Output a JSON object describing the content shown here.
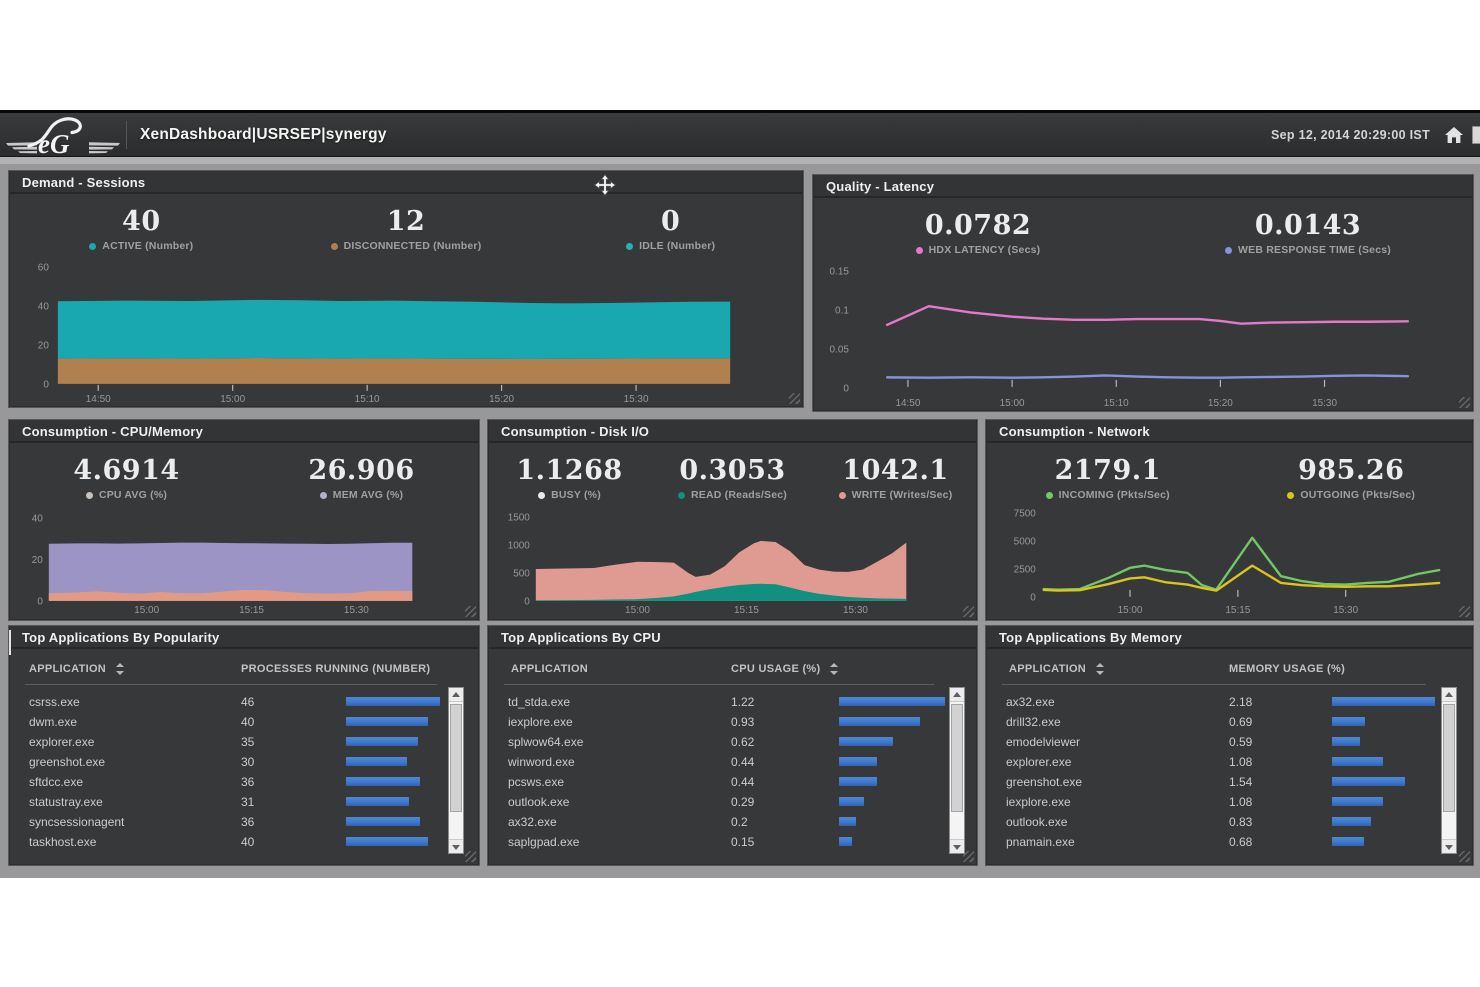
{
  "header": {
    "logo_text": "eG",
    "title": "XenDashboard|USRSEP|synergy",
    "datetime": "Sep 12, 2014 20:29:00 IST"
  },
  "panels": {
    "demand": {
      "title": "Demand - Sessions",
      "stats": [
        {
          "value": "40",
          "label": "ACTIVE (Number)",
          "color": "#1aa8b0"
        },
        {
          "value": "12",
          "label": "DISCONNECTED (Number)",
          "color": "#b0804e"
        },
        {
          "value": "0",
          "label": "IDLE (Number)",
          "color": "#25b3af"
        }
      ]
    },
    "quality": {
      "title": "Quality - Latency",
      "stats": [
        {
          "value": "0.0782",
          "label": "HDX LATENCY (Secs)",
          "color": "#e678cb"
        },
        {
          "value": "0.0143",
          "label": "WEB RESPONSE TIME (Secs)",
          "color": "#8792de"
        }
      ]
    },
    "cpumem": {
      "title": "Consumption - CPU/Memory",
      "stats": [
        {
          "value": "4.6914",
          "label": "CPU AVG (%)",
          "color": "#c9c2ba"
        },
        {
          "value": "26.906",
          "label": "MEM AVG (%)",
          "color": "#b3aecb"
        }
      ]
    },
    "disk": {
      "title": "Consumption - Disk I/O",
      "stats": [
        {
          "value": "1.1268",
          "label": "BUSY (%)",
          "color": "#e3ecec"
        },
        {
          "value": "0.3053",
          "label": "READ (Reads/Sec)",
          "color": "#0f9080"
        },
        {
          "value": "1042.1",
          "label": "WRITE (Writes/Sec)",
          "color": "#df9a92"
        }
      ]
    },
    "network": {
      "title": "Consumption - Network",
      "stats": [
        {
          "value": "2179.1",
          "label": "INCOMING (Pkts/Sec)",
          "color": "#72c863"
        },
        {
          "value": "985.26",
          "label": "OUTGOING (Pkts/Sec)",
          "color": "#d8c41f"
        }
      ]
    },
    "popularity": {
      "title": "Top Applications By Popularity"
    },
    "topcpu": {
      "title": "Top Applications By CPU"
    },
    "topmem": {
      "title": "Top Applications By Memory"
    }
  },
  "chart_data": {
    "demand": {
      "type": "stacked-area",
      "title": "Demand - Sessions",
      "x_range": [
        "14:47",
        "15:37"
      ],
      "x": [
        "14:47",
        "14:52",
        "14:57",
        "15:02",
        "15:05",
        "15:08",
        "15:12",
        "15:15",
        "15:18",
        "15:22",
        "15:25",
        "15:28",
        "15:31",
        "15:34",
        "15:37"
      ],
      "series": [
        {
          "name": "DISCONNECTED (Number)",
          "color": "#b0804e",
          "values": [
            13,
            13.2,
            13,
            13.3,
            13.1,
            13,
            13.1,
            13,
            12.9,
            12.8,
            12.9,
            13,
            13.1,
            13.2,
            13.2
          ]
        },
        {
          "name": "ACTIVE (Number)",
          "color": "#1aa8b0",
          "values": [
            29.5,
            29.6,
            29.6,
            29.9,
            29.9,
            29.6,
            29.7,
            29.5,
            29.3,
            28.8,
            28.5,
            28.6,
            28.8,
            29,
            29.1
          ]
        }
      ],
      "ylim": [
        0,
        60
      ],
      "y_ticks": [
        {
          "v": 0,
          "label": "0"
        },
        {
          "v": 20,
          "label": "20"
        },
        {
          "v": 40,
          "label": "40"
        },
        {
          "v": 60,
          "label": "60"
        }
      ],
      "x_ticks": [
        {
          "t": "14:50",
          "label": "14:50"
        },
        {
          "t": "15:00",
          "label": "15:00"
        },
        {
          "t": "15:10",
          "label": "15:10"
        },
        {
          "t": "15:20",
          "label": "15:20"
        },
        {
          "t": "15:30",
          "label": "15:30"
        }
      ]
    },
    "quality": {
      "type": "line",
      "title": "Quality - Latency",
      "x_range": [
        "14:45",
        "15:41"
      ],
      "x": [
        "14:48",
        "14:52",
        "14:56",
        "15:00",
        "15:03",
        "15:06",
        "15:09",
        "15:12",
        "15:15",
        "15:18",
        "15:20",
        "15:22",
        "15:25",
        "15:28",
        "15:31",
        "15:34",
        "15:38"
      ],
      "series": [
        {
          "name": "HDX LATENCY (Secs)",
          "color": "#e678cb",
          "values": [
            0.081,
            0.105,
            0.097,
            0.0915,
            0.089,
            0.0875,
            0.0875,
            0.0885,
            0.0885,
            0.0885,
            0.086,
            0.0825,
            0.084,
            0.0845,
            0.085,
            0.085,
            0.0855
          ]
        },
        {
          "name": "WEB RESPONSE TIME (Secs)",
          "color": "#8792de",
          "values": [
            0.0135,
            0.013,
            0.0135,
            0.013,
            0.0135,
            0.0145,
            0.016,
            0.0145,
            0.0135,
            0.013,
            0.013,
            0.0135,
            0.014,
            0.0145,
            0.0155,
            0.016,
            0.015
          ]
        }
      ],
      "ylim": [
        0,
        0.15
      ],
      "y_ticks": [
        {
          "v": 0,
          "label": "0"
        },
        {
          "v": 0.05,
          "label": "0.05"
        },
        {
          "v": 0.1,
          "label": "0.1"
        },
        {
          "v": 0.15,
          "label": "0.15"
        }
      ],
      "x_ticks": [
        {
          "t": "14:50",
          "label": "14:50"
        },
        {
          "t": "15:00",
          "label": "15:00"
        },
        {
          "t": "15:10",
          "label": "15:10"
        },
        {
          "t": "15:20",
          "label": "15:20"
        },
        {
          "t": "15:30",
          "label": "15:30"
        }
      ]
    },
    "cpumem": {
      "type": "area",
      "title": "Consumption - CPU/Memory",
      "x_range": [
        "14:46",
        "15:38"
      ],
      "x": [
        "14:46",
        "14:50",
        "14:53",
        "14:56",
        "14:59",
        "15:02",
        "15:05",
        "15:08",
        "15:11",
        "15:14",
        "15:17",
        "15:20",
        "15:23",
        "15:26",
        "15:29",
        "15:32",
        "15:35",
        "15:38"
      ],
      "series": [
        {
          "name": "MEM AVG (%)",
          "color": "#9b94c4",
          "values": [
            27.6,
            27.8,
            27.8,
            27.7,
            27.8,
            28.0,
            28.2,
            28.2,
            28.0,
            27.9,
            27.8,
            27.7,
            27.6,
            27.5,
            27.6,
            27.9,
            28.1,
            28.1
          ]
        },
        {
          "name": "CPU AVG (%)",
          "color": "#e29a84",
          "values": [
            3.6,
            4.1,
            4.6,
            3.9,
            3.5,
            4.3,
            3.7,
            3.7,
            4.5,
            5.3,
            5.1,
            4.3,
            3.7,
            3.5,
            3.7,
            4.7,
            4.9,
            4.7
          ]
        }
      ],
      "ylim": [
        0,
        40
      ],
      "y_ticks": [
        {
          "v": 0,
          "label": "0"
        },
        {
          "v": 20,
          "label": "20"
        },
        {
          "v": 40,
          "label": "40"
        }
      ],
      "x_ticks": [
        {
          "t": "15:00",
          "label": "15:00"
        },
        {
          "t": "15:15",
          "label": "15:15"
        },
        {
          "t": "15:30",
          "label": "15:30"
        }
      ]
    },
    "disk": {
      "type": "area",
      "title": "Consumption - Disk I/O",
      "x_range": [
        "14:46",
        "15:37"
      ],
      "x": [
        "14:46",
        "14:50",
        "14:54",
        "14:57",
        "15:00",
        "15:03",
        "15:05",
        "15:07",
        "15:08",
        "15:10",
        "15:12",
        "15:14",
        "15:16",
        "15:17",
        "15:19",
        "15:21",
        "15:23",
        "15:25",
        "15:27",
        "15:29",
        "15:31",
        "15:33",
        "15:35",
        "15:37"
      ],
      "series": [
        {
          "name": "WRITE (Writes/Sec)",
          "color": "#df9a92",
          "values": [
            570,
            580,
            590,
            650,
            700,
            695,
            685,
            500,
            430,
            470,
            620,
            870,
            1030,
            1075,
            1055,
            890,
            640,
            560,
            525,
            520,
            560,
            700,
            850,
            1045
          ]
        },
        {
          "name": "READ (Reads/Sec)",
          "color": "#0f9080",
          "values": [
            10,
            14,
            18,
            24,
            30,
            55,
            80,
            130,
            160,
            210,
            250,
            285,
            302,
            306,
            297,
            240,
            175,
            125,
            95,
            70,
            55,
            45,
            40,
            35
          ]
        }
      ],
      "ylim": [
        0,
        1500
      ],
      "y_ticks": [
        {
          "v": 0,
          "label": "0"
        },
        {
          "v": 500,
          "label": "500"
        },
        {
          "v": 1000,
          "label": "1000"
        },
        {
          "v": 1500,
          "label": "1500"
        }
      ],
      "x_ticks": [
        {
          "t": "15:00",
          "label": "15:00"
        },
        {
          "t": "15:15",
          "label": "15:15"
        },
        {
          "t": "15:30",
          "label": "15:30"
        }
      ]
    },
    "network": {
      "type": "line",
      "title": "Consumption - Network",
      "x_range": [
        "14:48",
        "15:43"
      ],
      "x": [
        "14:48",
        "14:50",
        "14:53",
        "14:57",
        "15:00",
        "15:02",
        "15:05",
        "15:08",
        "15:10",
        "15:12",
        "15:17",
        "15:21",
        "15:24",
        "15:27",
        "15:30",
        "15:33",
        "15:36",
        "15:40",
        "15:43"
      ],
      "series": [
        {
          "name": "INCOMING (Pkts/Sec)",
          "color": "#72c863",
          "values": [
            700,
            640,
            700,
            1700,
            2600,
            2800,
            2400,
            2150,
            1050,
            650,
            5300,
            1850,
            1400,
            1150,
            1100,
            1250,
            1350,
            2050,
            2400
          ]
        },
        {
          "name": "OUTGOING (Pkts/Sec)",
          "color": "#d8c41f",
          "values": [
            620,
            560,
            600,
            1150,
            1650,
            1750,
            1300,
            1100,
            800,
            560,
            2800,
            1250,
            1050,
            950,
            900,
            950,
            950,
            1100,
            1250
          ]
        }
      ],
      "ylim": [
        0,
        7500
      ],
      "y_ticks": [
        {
          "v": 0,
          "label": "0"
        },
        {
          "v": 2500,
          "label": "2500"
        },
        {
          "v": 5000,
          "label": "5000"
        },
        {
          "v": 7500,
          "label": "7500"
        }
      ],
      "x_ticks": [
        {
          "t": "15:00",
          "label": "15:00"
        },
        {
          "t": "15:15",
          "label": "15:15"
        },
        {
          "t": "15:30",
          "label": "15:30"
        }
      ]
    }
  },
  "tables": {
    "popularity": {
      "columns": [
        "APPLICATION",
        "PROCESSES RUNNING (NUMBER)"
      ],
      "sort_column": 0,
      "bar_color": "#3e79cb",
      "max_value": 46,
      "rows": [
        {
          "app": "csrss.exe",
          "value": "46"
        },
        {
          "app": "dwm.exe",
          "value": "40"
        },
        {
          "app": "explorer.exe",
          "value": "35"
        },
        {
          "app": "greenshot.exe",
          "value": "30"
        },
        {
          "app": "sftdcc.exe",
          "value": "36"
        },
        {
          "app": "statustray.exe",
          "value": "31"
        },
        {
          "app": "syncsessionagent",
          "value": "36"
        },
        {
          "app": "taskhost.exe",
          "value": "40"
        }
      ]
    },
    "topcpu": {
      "columns": [
        "APPLICATION",
        "CPU USAGE (%)"
      ],
      "sort_column": 1,
      "bar_color": "#3e79cb",
      "max_value": 1.22,
      "rows": [
        {
          "app": "td_stda.exe",
          "value": "1.22"
        },
        {
          "app": "iexplore.exe",
          "value": "0.93"
        },
        {
          "app": "splwow64.exe",
          "value": "0.62"
        },
        {
          "app": "winword.exe",
          "value": "0.44"
        },
        {
          "app": "pcsws.exe",
          "value": "0.44"
        },
        {
          "app": "outlook.exe",
          "value": "0.29"
        },
        {
          "app": "ax32.exe",
          "value": "0.2"
        },
        {
          "app": "saplgpad.exe",
          "value": "0.15"
        }
      ]
    },
    "topmem": {
      "columns": [
        "APPLICATION",
        "MEMORY USAGE (%)"
      ],
      "sort_column": 0,
      "bar_color": "#3e79cb",
      "max_value": 2.18,
      "rows": [
        {
          "app": "ax32.exe",
          "value": "2.18"
        },
        {
          "app": "drill32.exe",
          "value": "0.69"
        },
        {
          "app": "emodelviewer",
          "value": "0.59"
        },
        {
          "app": "explorer.exe",
          "value": "1.08"
        },
        {
          "app": "greenshot.exe",
          "value": "1.54"
        },
        {
          "app": "iexplore.exe",
          "value": "1.08"
        },
        {
          "app": "outlook.exe",
          "value": "0.83"
        },
        {
          "app": "pnamain.exe",
          "value": "0.68"
        }
      ]
    }
  },
  "cursor": {
    "type": "move-cursor"
  }
}
